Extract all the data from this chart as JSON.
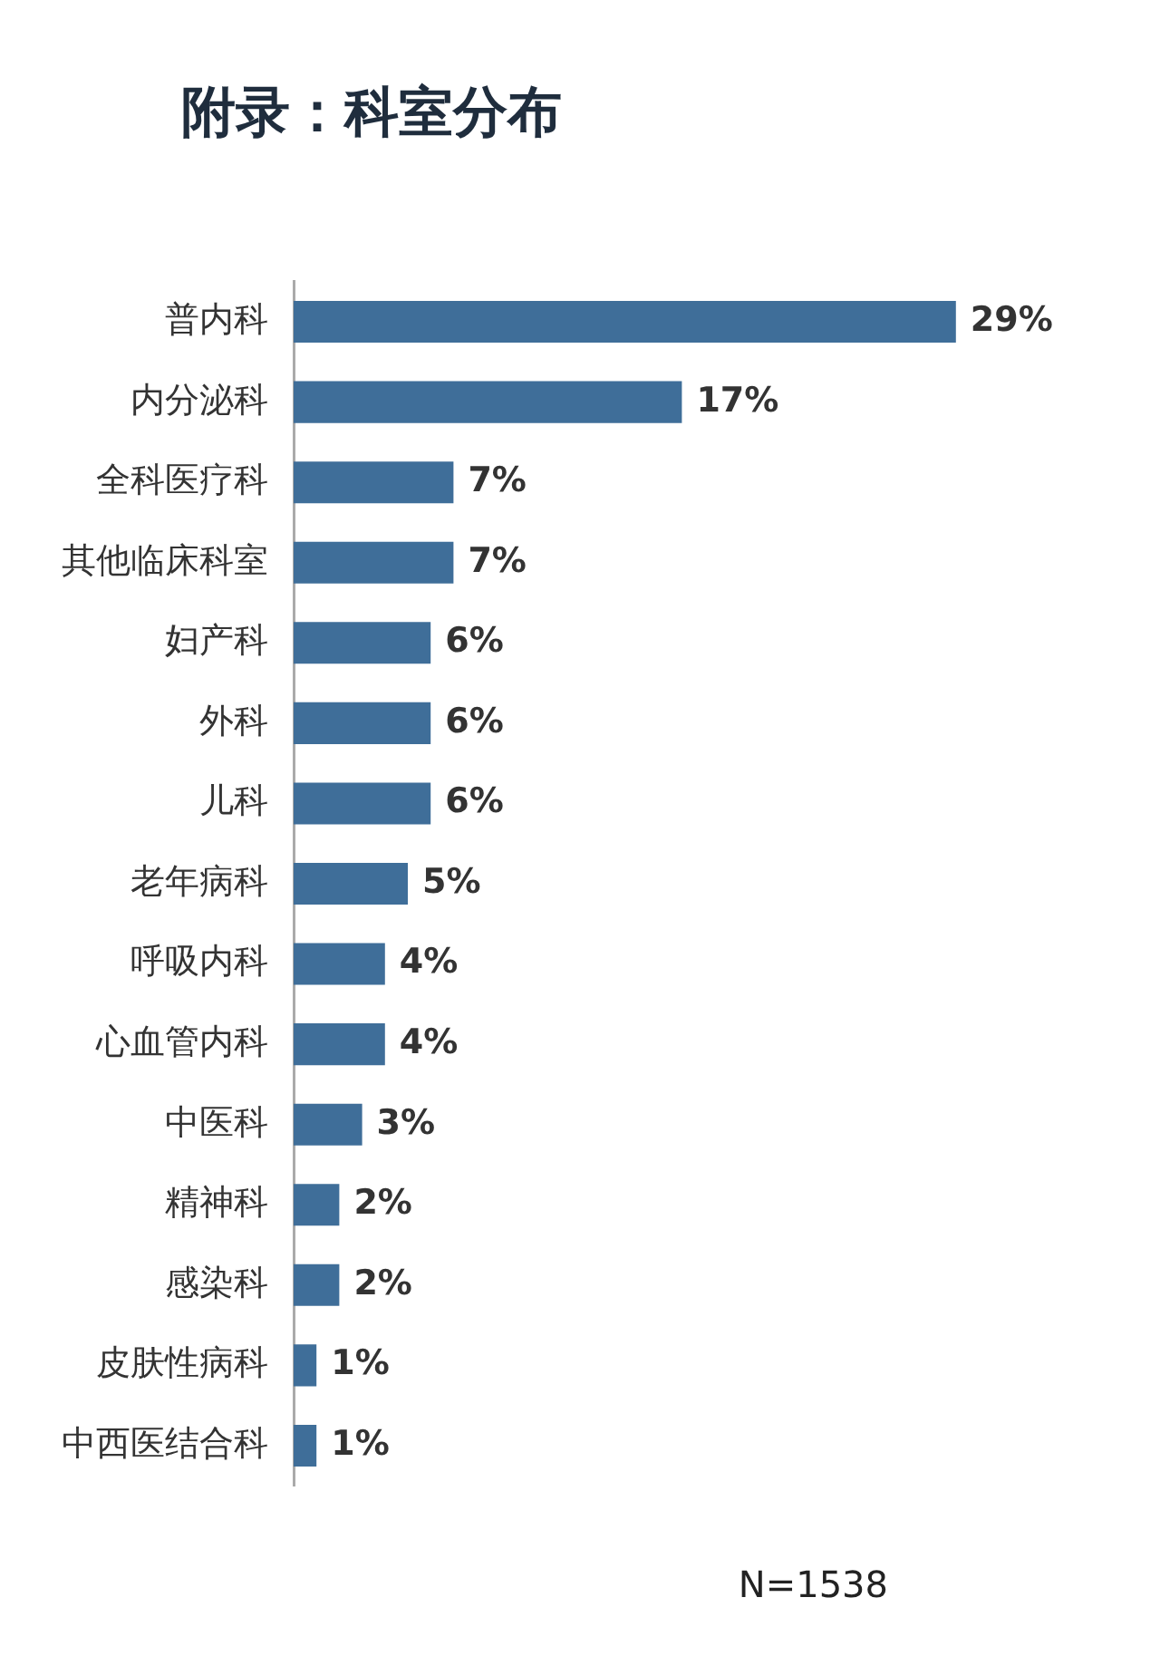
{
  "chart_data": {
    "type": "bar",
    "orientation": "horizontal",
    "title": "附录：科室分布",
    "categories": [
      "普内科",
      "内分泌科",
      "全科医疗科",
      "其他临床科室",
      "妇产科",
      "外科",
      "儿科",
      "老年病科",
      "呼吸内科",
      "心血管内科",
      "中医科",
      "精神科",
      "感染科",
      "皮肤性病科",
      "中西医结合科"
    ],
    "values": [
      29,
      17,
      7,
      7,
      6,
      6,
      6,
      5,
      4,
      4,
      3,
      2,
      2,
      1,
      1
    ],
    "value_labels": [
      "29%",
      "17%",
      "7%",
      "7%",
      "6%",
      "6%",
      "6%",
      "5%",
      "4%",
      "4%",
      "3%",
      "2%",
      "2%",
      "1%",
      "1%"
    ],
    "color": "#3f6e99",
    "grid": false,
    "legend": false,
    "tick_labels": "y",
    "annotations": [
      "N=1538"
    ]
  }
}
